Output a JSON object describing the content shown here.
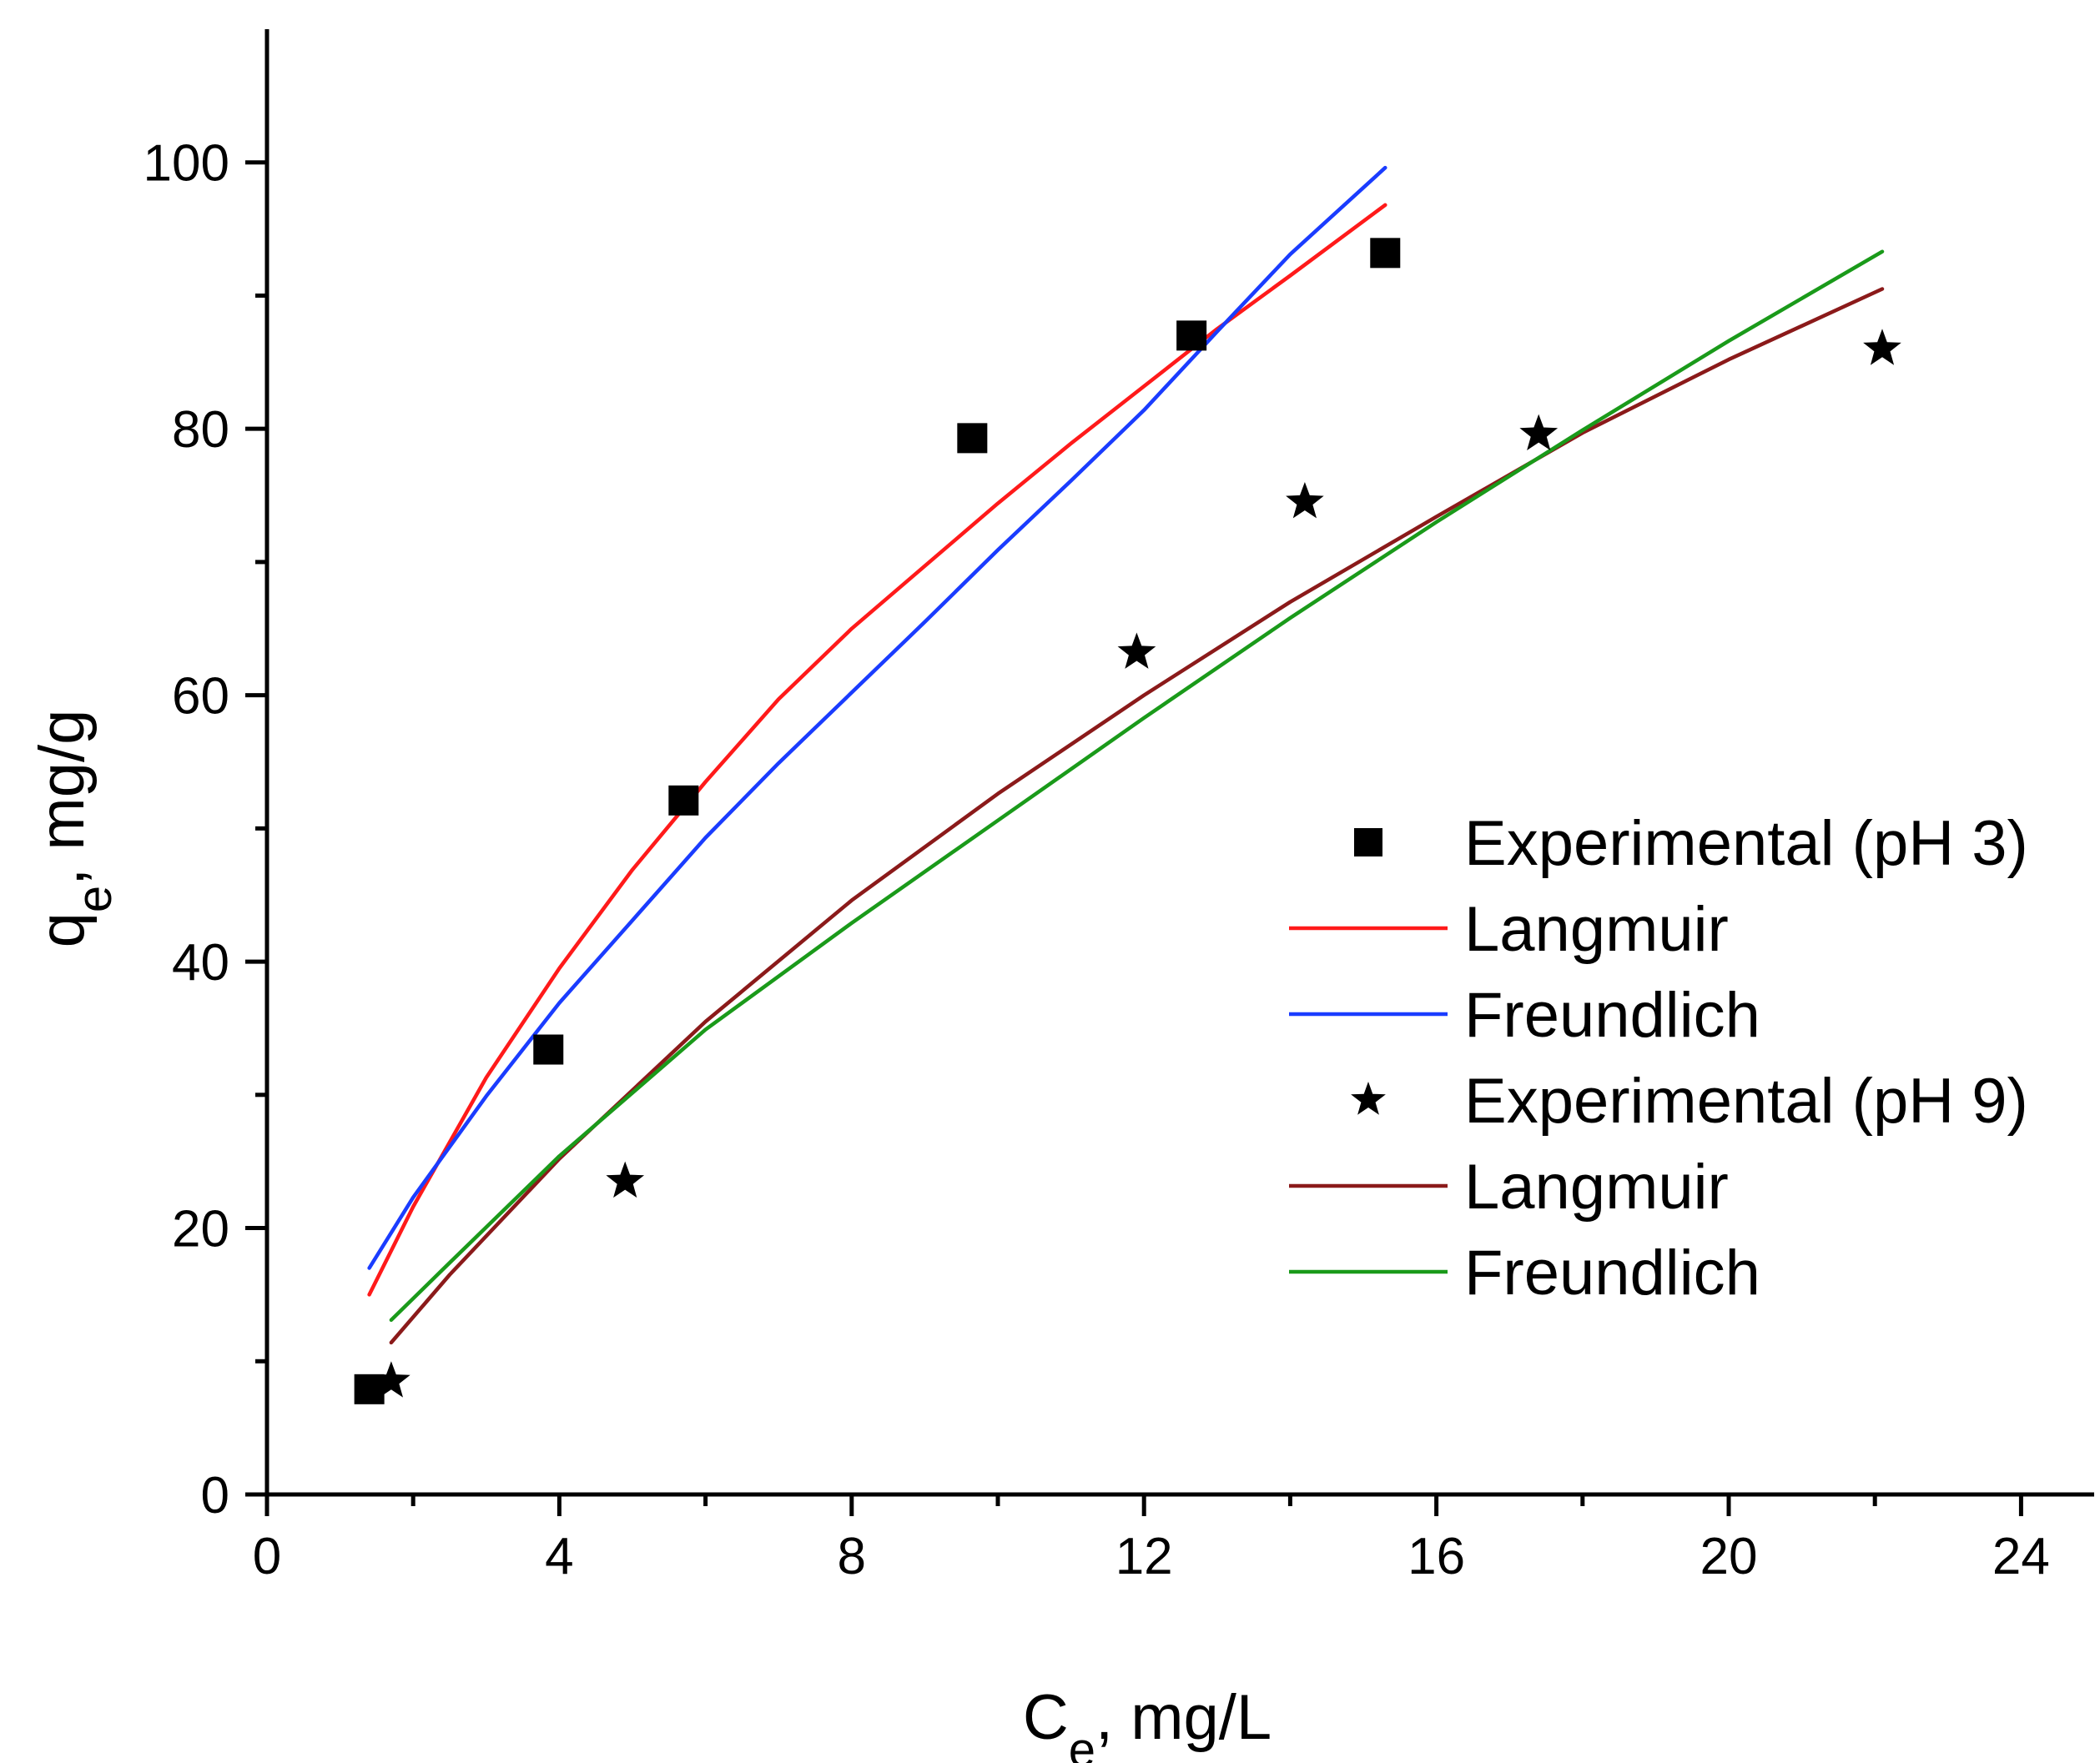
{
  "chart_data": {
    "type": "scatter",
    "title": "",
    "xlabel": {
      "main": "C",
      "sub": "e",
      "rest": ", mg/L"
    },
    "ylabel": {
      "main": "q",
      "sub": "e",
      "rest": ", mg/g"
    },
    "xlim": [
      0,
      25
    ],
    "ylim": [
      0,
      110
    ],
    "x_ticks": [
      0,
      4,
      8,
      12,
      16,
      20,
      24
    ],
    "y_ticks": [
      0,
      20,
      40,
      60,
      80,
      100
    ],
    "x_tick_labels": [
      "0",
      "4",
      "8",
      "12",
      "16",
      "20",
      "24"
    ],
    "y_tick_labels": [
      "0",
      "20",
      "40",
      "60",
      "80",
      "100"
    ],
    "legend_position": "center-right",
    "series": [
      {
        "name": "Experimental (pH 3)",
        "kind": "scatter",
        "marker": "square",
        "color": "#000000",
        "x": [
          1.4,
          3.85,
          5.7,
          9.65,
          12.65,
          15.3
        ],
        "y": [
          7.9,
          33.4,
          52.1,
          79.3,
          87.0,
          93.2
        ]
      },
      {
        "name": "Langmuir",
        "kind": "line",
        "color": "#ff1a1a",
        "x": [
          1.4,
          2.0,
          3.0,
          4.0,
          5.0,
          6.0,
          7.0,
          8.0,
          9.0,
          10.0,
          11.0,
          12.0,
          13.0,
          14.0,
          15.3
        ],
        "y": [
          15.0,
          21.6,
          31.3,
          39.5,
          46.9,
          53.5,
          59.7,
          65.0,
          69.7,
          74.4,
          78.9,
          83.2,
          87.5,
          91.5,
          96.8
        ]
      },
      {
        "name": "Freundlich",
        "kind": "line",
        "color": "#1a3cff",
        "x": [
          1.4,
          2.0,
          3.0,
          4.0,
          5.0,
          6.0,
          7.0,
          8.0,
          9.0,
          10.0,
          11.0,
          12.0,
          13.0,
          14.0,
          15.3
        ],
        "y": [
          17.0,
          22.3,
          29.9,
          36.9,
          43.1,
          49.3,
          54.9,
          60.2,
          65.5,
          70.9,
          76.1,
          81.4,
          87.3,
          93.1,
          99.6
        ]
      },
      {
        "name": "Experimental (pH 9)",
        "kind": "scatter",
        "marker": "star",
        "color": "#000000",
        "x": [
          1.7,
          4.9,
          11.9,
          14.2,
          17.4,
          22.1
        ],
        "y": [
          8.5,
          23.5,
          63.2,
          74.5,
          79.6,
          86.0
        ]
      },
      {
        "name": "Langmuir",
        "kind": "line",
        "color": "#8b1a1a",
        "x": [
          1.7,
          2.5,
          4.0,
          6.0,
          8.0,
          10.0,
          12.0,
          14.0,
          16.0,
          18.0,
          20.0,
          22.1
        ],
        "y": [
          11.4,
          16.5,
          25.2,
          35.5,
          44.6,
          52.6,
          60.0,
          67.0,
          73.4,
          79.7,
          85.2,
          90.5
        ]
      },
      {
        "name": "Freundlich",
        "kind": "line",
        "color": "#1a9a1a",
        "x": [
          1.7,
          2.5,
          4.0,
          6.0,
          8.0,
          10.0,
          12.0,
          14.0,
          16.0,
          18.0,
          20.0,
          22.1
        ],
        "y": [
          13.1,
          17.4,
          25.4,
          34.9,
          42.9,
          50.6,
          58.3,
          65.8,
          73.0,
          79.9,
          86.6,
          93.3
        ]
      }
    ]
  }
}
